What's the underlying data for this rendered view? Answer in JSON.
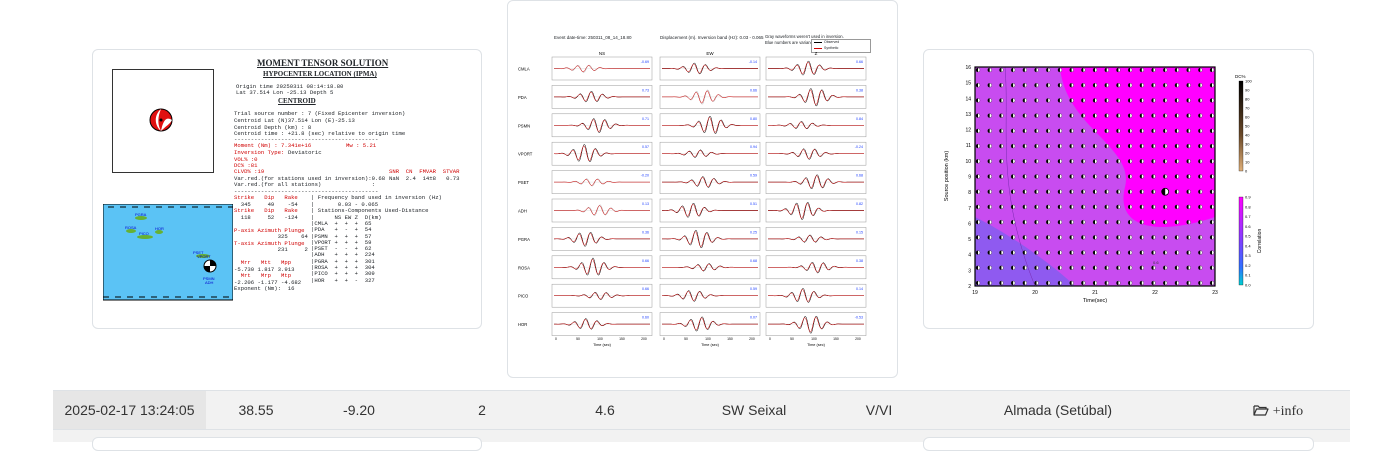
{
  "moment_tensor": {
    "title": "MOMENT TENSOR SOLUTION",
    "hypocenter_heading": "HYPOCENTER LOCATION (IPMA)",
    "origin_time": "Origin time 20250311 08:14:18.80",
    "lat_lon_depth": "Lat 37.514 Lon -25.13 Depth 5",
    "centroid_heading": "CENTROID",
    "trial_source": "Trial source number : 7 (Fixed Epicenter inversion)",
    "centroid_latlon": "Centroid Lat (N)37.514 Lon (E)-25.13",
    "centroid_depth": "Centroid Depth (km) : 8",
    "centroid_time": "Centroid time : +21.8 (sec) relative to origin time",
    "separator": "-------------------------------------------",
    "moment": "Moment (Nm) : 7.341e+16",
    "mw": "Mw : 5.21",
    "inversion_type_label": "Inversion Type:",
    "inversion_type_value": "Deviatoric",
    "vol": "VOL% :0",
    "dc": "DC% :81",
    "clvd": "CLVD% :19",
    "stats_header": "SNR  CN  FMVAR  STVAR",
    "varred_used": "Var.red.(for stations used in inversion):0.68",
    "stats_values": "NaN  2.4  14±8   0.73",
    "varred_all": "Var.red.(for all stations)               :",
    "nodal_header": "Strike   Dip   Rake",
    "nodal1": "  345     49    -54",
    "nodal2_label": "Strike   Dip   Rake",
    "nodal2": "  118     52   -124",
    "freq_band": "| Frequency band used in inversion (Hz)",
    "freq_value": "|       0.03 - 0.065",
    "stations_header": "| Stations-Components Used-Distance",
    "stations_cols": "|      NS EW Z  D(km)",
    "p_axis": "P-axis Azimuth Plunge",
    "p_axis_values": "             325    64",
    "t_axis": "T-axis Azimuth Plunge",
    "t_axis_values": "             231     2",
    "tensor_header": "  Mrr   Mtt   Mpp",
    "tensor_row1": "-5.730 1.817 3.913",
    "tensor_header2": "  Mrt   Mrp   Mtp",
    "tensor_row2": "-2.206 -1.177 -4.682",
    "exponent": "Exponent (Nm):  16",
    "stations": [
      "|CMLA  +  +  +  65",
      "|PDA   +  -  +  54",
      "|PSMN  +  +  +  57",
      "|VPORT +  +  +  59",
      "|PSET  -  -  +  62",
      "|ADH   +  +  +  224",
      "|PGRA  +  +  +  301",
      "|ROSA  +  +  +  304",
      "|PICO  +  +  +  309",
      "|HOR   +  +  -  327"
    ],
    "map_labels": [
      "PGRA",
      "ROSA",
      "PICO",
      "HOR",
      "PSET",
      "VPORT",
      "PSMN",
      "ADH"
    ]
  },
  "waveforms": {
    "header_left": "Event date-time: 250311_08_14_18.80",
    "header_mid": "Displacement (m).  Inversion band (Hz): 0.03 - 0.065",
    "header_right1": "Gray waveforms weren't used in inversion.",
    "header_right2": "Blue numbers are variance reduction",
    "legend_observed": "Observed",
    "legend_synthetic": "Synthetic",
    "components": [
      "NS",
      "EW",
      "Z"
    ],
    "x_label": "Time (sec)",
    "x_ticks": [
      "0",
      "50",
      "100",
      "150",
      "200"
    ],
    "stations": [
      {
        "name": "CMLA",
        "vr": [
          "-0.69",
          "-0.14",
          "0.66"
        ]
      },
      {
        "name": "PDA",
        "vr": [
          "0.73",
          "0.66",
          "0.38"
        ]
      },
      {
        "name": "PSMN",
        "vr": [
          "0.71",
          "0.80",
          "0.84"
        ]
      },
      {
        "name": "VPORT",
        "vr": [
          "0.57",
          "0.94",
          "-0.24"
        ]
      },
      {
        "name": "PSET",
        "vr": [
          "-0.20",
          "0.59",
          "0.68"
        ]
      },
      {
        "name": "ADH",
        "vr": [
          "0.13",
          "0.51",
          "0.82"
        ]
      },
      {
        "name": "PGRA",
        "vr": [
          "0.36",
          "0.25",
          "0.15"
        ]
      },
      {
        "name": "ROSA",
        "vr": [
          "0.66",
          "0.68",
          "0.38"
        ]
      },
      {
        "name": "PICO",
        "vr": [
          "0.66",
          "0.59",
          "0.14"
        ]
      },
      {
        "name": "HOR",
        "vr": [
          "0.60",
          "0.07",
          "-0.53"
        ]
      }
    ]
  },
  "source_grid": {
    "y_label": "Source position (km)",
    "x_label": "Time(sec)",
    "x_ticks": [
      "19",
      "20",
      "21",
      "22",
      "23"
    ],
    "y_ticks": [
      "2",
      "3",
      "4",
      "5",
      "6",
      "7",
      "8",
      "9",
      "10",
      "11",
      "12",
      "13",
      "14",
      "15",
      "16"
    ],
    "dc_label": "DC%",
    "dc_ticks": [
      "100",
      "90",
      "80",
      "70",
      "60",
      "50",
      "40",
      "30",
      "20",
      "10",
      "0"
    ],
    "corr_label": "Correlation",
    "corr_ticks": [
      "0.9",
      "0.8",
      "0.7",
      "0.6",
      "0.5",
      "0.4",
      "0.3",
      "0.2",
      "0.1",
      "0.0"
    ],
    "contour_label": "0.6",
    "colors": {
      "magenta": "#ff00ff",
      "violet": "#b040ff",
      "purple": "#8f5af0"
    }
  },
  "table_row": {
    "datetime": "2025-02-17 13:24:05",
    "lat": "38.55",
    "lon": "-9.20",
    "depth": "2",
    "magnitude": "4.6",
    "region": "SW Seixal",
    "intensity": "V/VI",
    "locality": "Almada (Setúbal)",
    "info_label": "+info",
    "info_icon": "folder-open-icon"
  }
}
